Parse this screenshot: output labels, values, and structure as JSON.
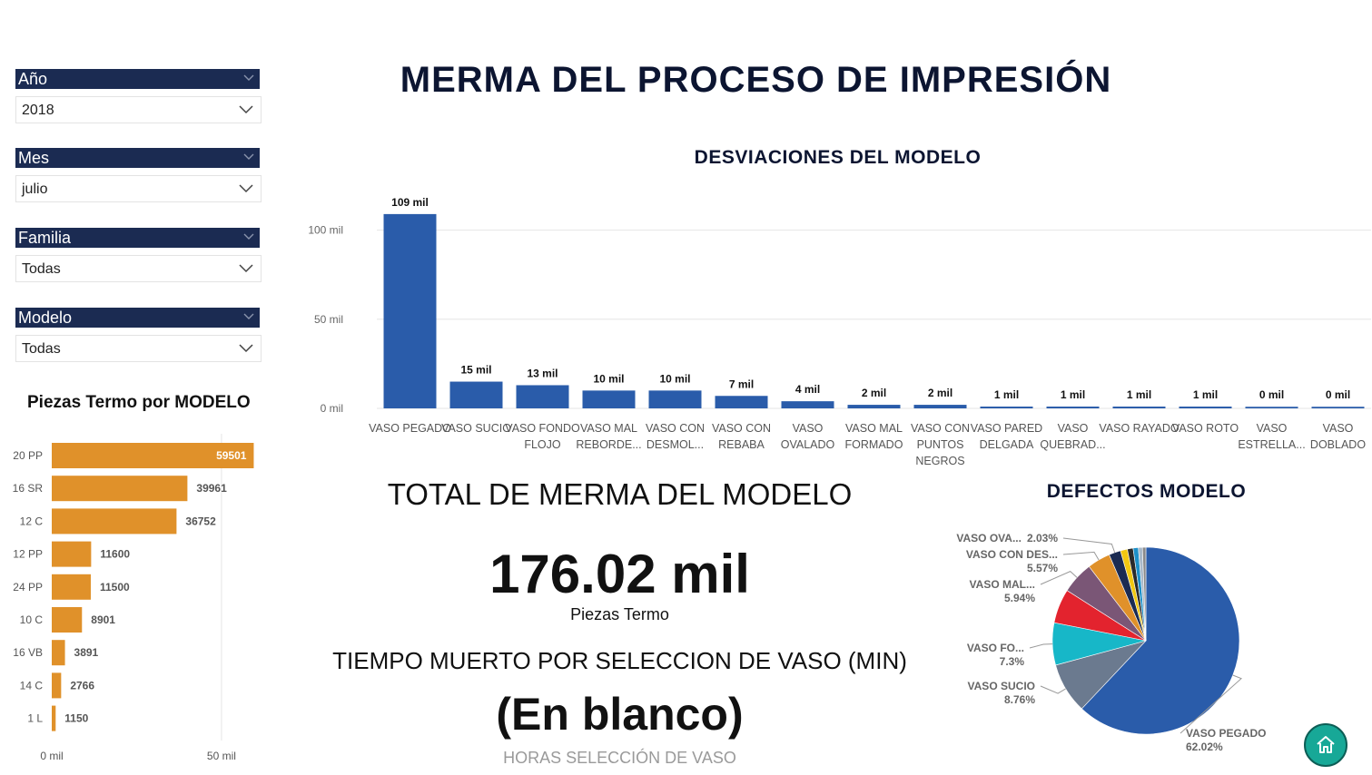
{
  "title": "MERMA DEL PROCESO DE IMPRESIÓN",
  "colors": {
    "navy": "#1b2b52",
    "bar_blue": "#2a5caa",
    "bar_orange": "#e0912a",
    "home_teal": "#17a897"
  },
  "filters": [
    {
      "label": "Año",
      "value": "2018"
    },
    {
      "label": "Mes",
      "value": "julio"
    },
    {
      "label": "Familia",
      "value": "Todas"
    },
    {
      "label": "Modelo",
      "value": "Todas"
    }
  ],
  "kpi": {
    "total_label": "TOTAL DE MERMA DEL MODELO",
    "total_value": "176.02 mil",
    "total_unit": "Piezas Termo",
    "downtime_label": "TIEMPO MUERTO POR SELECCION DE VASO (MIN)",
    "downtime_value": "(En blanco)",
    "hours_label": "HORAS SELECCIÓN DE VASO"
  },
  "home_icon": "home-icon",
  "chart_data": [
    {
      "type": "bar",
      "orientation": "vertical",
      "title": "DESVIACIONES DEL MODELO",
      "categories": [
        "VASO PEGADO",
        "VASO SUCIO",
        "VASO FONDO FLOJO",
        "VASO MAL REBORDE...",
        "VASO CON DESMOL...",
        "VASO CON REBABA",
        "VASO OVALADO",
        "VASO MAL FORMADO",
        "VASO CON PUNTOS NEGROS",
        "VASO PARED DELGADA",
        "VASO QUEBRAD...",
        "VASO RAYADO",
        "VASO ROTO",
        "VASO ESTRELLA...",
        "VASO DOBLADO"
      ],
      "values": [
        109,
        15,
        13,
        10,
        10,
        7,
        4,
        2,
        2,
        1,
        1,
        1,
        1,
        0,
        0
      ],
      "data_labels": [
        "109 mil",
        "15 mil",
        "13 mil",
        "10 mil",
        "10 mil",
        "7 mil",
        "4 mil",
        "2 mil",
        "2 mil",
        "1 mil",
        "1 mil",
        "1 mil",
        "1 mil",
        "0 mil",
        "0 mil"
      ],
      "y_ticks": [
        0,
        50,
        100
      ],
      "y_tick_labels": [
        "0 mil",
        "50 mil",
        "100 mil"
      ],
      "ylim": [
        0,
        112
      ],
      "grid": true,
      "color": "#2a5caa"
    },
    {
      "type": "bar",
      "orientation": "horizontal",
      "title": "Piezas Termo por MODELO",
      "categories": [
        "20 PP",
        "16 SR",
        "12 C",
        "12 PP",
        "24 PP",
        "10 C",
        "16 VB",
        "14 C",
        "1 L"
      ],
      "values": [
        59501,
        39961,
        36752,
        11600,
        11500,
        8901,
        3891,
        2766,
        1150
      ],
      "data_labels": [
        "59501",
        "39961",
        "36752",
        "11600",
        "11500",
        "8901",
        "3891",
        "2766",
        "1150"
      ],
      "x_ticks": [
        0,
        50000
      ],
      "x_tick_labels": [
        "0 mil",
        "50 mil"
      ],
      "xlim": [
        0,
        65000
      ],
      "color": "#e0912a"
    },
    {
      "type": "pie",
      "title": "DEFECTOS MODELO",
      "slices": [
        {
          "name": "VASO PEGADO",
          "label": "VASO PEGADO",
          "pct": "62.02%",
          "value": 62.02,
          "color": "#2a5caa"
        },
        {
          "name": "VASO SUCIO",
          "label": "VASO SUCIO",
          "pct": "8.76%",
          "value": 8.76,
          "color": "#6b7a8f"
        },
        {
          "name": "VASO FONDO FLOJO",
          "label": "VASO FO...",
          "pct": "7.3%",
          "value": 7.3,
          "color": "#17b7c8"
        },
        {
          "name": "VASO MAL REBORDE",
          "label": "",
          "pct": "",
          "value": 5.94,
          "color": "#e3232e"
        },
        {
          "name": "VASO CON DESMOLDE",
          "label": "VASO MAL...",
          "pct": "5.94%",
          "value": 5.57,
          "color": "#7a5676"
        },
        {
          "name": "VASO CON REBABA",
          "label": "VASO CON DES...",
          "pct": "5.57%",
          "value": 3.98,
          "color": "#e0912a"
        },
        {
          "name": "VASO OVALADO",
          "label": "VASO OVA...",
          "pct": "2.03%",
          "value": 2.03,
          "color": "#1b2b52"
        },
        {
          "name": "s8",
          "label": "",
          "pct": "",
          "value": 1.2,
          "color": "#f2c811"
        },
        {
          "name": "s9",
          "label": "",
          "pct": "",
          "value": 1.0,
          "color": "#2b2b2b"
        },
        {
          "name": "s10",
          "label": "",
          "pct": "",
          "value": 0.9,
          "color": "#1e90c8"
        },
        {
          "name": "s11",
          "label": "",
          "pct": "",
          "value": 0.7,
          "color": "#a9b9c9"
        },
        {
          "name": "s12",
          "label": "",
          "pct": "",
          "value": 0.59,
          "color": "#8a8a8a"
        }
      ]
    }
  ]
}
